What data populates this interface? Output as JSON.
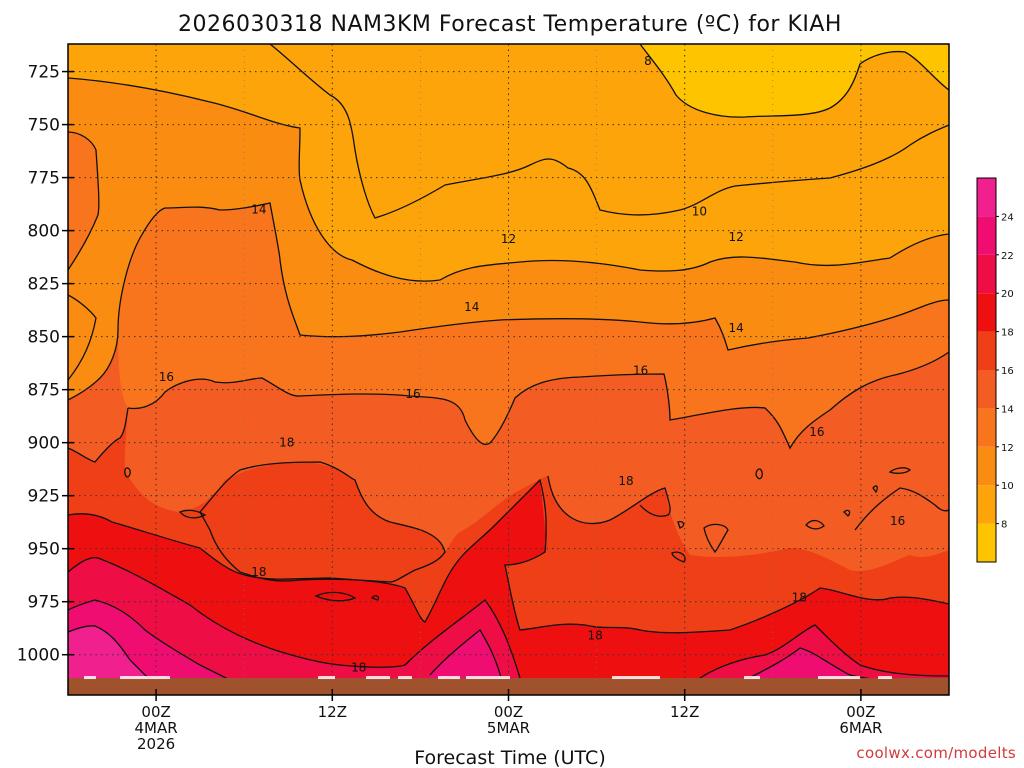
{
  "chart_data": {
    "type": "heatmap",
    "title": "2026030318 NAM3KM Forecast Temperature (ºC) for KIAH",
    "xlabel": "Forecast Time (UTC)",
    "ylabel": "",
    "watermark": "coolwx.com/modelts",
    "y_ticks": [
      725,
      750,
      775,
      800,
      825,
      850,
      875,
      900,
      925,
      950,
      975,
      1000
    ],
    "ylim": [
      1019,
      712
    ],
    "x_hours": [
      0,
      12,
      24,
      36,
      48
    ],
    "xlim": [
      -6,
      54
    ],
    "x_tick_labels": [
      {
        "hour": 0,
        "line1": "00Z",
        "line2": "4MAR",
        "line3": "2026"
      },
      {
        "hour": 12,
        "line1": "12Z",
        "line2": "",
        "line3": ""
      },
      {
        "hour": 24,
        "line1": "00Z",
        "line2": "5MAR",
        "line3": ""
      },
      {
        "hour": 36,
        "line1": "12Z",
        "line2": "",
        "line3": ""
      },
      {
        "hour": 48,
        "line1": "00Z",
        "line2": "6MAR",
        "line3": ""
      }
    ],
    "ground_level_hPa": 1011,
    "colorbar": {
      "levels": [
        8,
        10,
        12,
        14,
        16,
        18,
        20,
        22,
        24
      ],
      "colors": [
        "#fec400",
        "#fda40a",
        "#fb8c12",
        "#f8741d",
        "#f35c22",
        "#ee3f17",
        "#ee1010",
        "#ee0d45",
        "#ef0d72",
        "#f0208e"
      ]
    },
    "contour_labels": [
      {
        "value": "8",
        "hour": 33.5,
        "p": 720
      },
      {
        "value": "10",
        "hour": 37.0,
        "p": 791
      },
      {
        "value": "12",
        "hour": 24.0,
        "p": 804
      },
      {
        "value": "12",
        "hour": 39.5,
        "p": 803
      },
      {
        "value": "14",
        "hour": 7.0,
        "p": 790
      },
      {
        "value": "14",
        "hour": 21.5,
        "p": 836
      },
      {
        "value": "14",
        "hour": 39.5,
        "p": 846
      },
      {
        "value": "16",
        "hour": 0.7,
        "p": 869
      },
      {
        "value": "16",
        "hour": 17.5,
        "p": 877
      },
      {
        "value": "16",
        "hour": 33.0,
        "p": 866
      },
      {
        "value": "16",
        "hour": 45.0,
        "p": 895
      },
      {
        "value": "16",
        "hour": 50.5,
        "p": 937
      },
      {
        "value": "18",
        "hour": 8.9,
        "p": 900
      },
      {
        "value": "18",
        "hour": 7.0,
        "p": 961
      },
      {
        "value": "18",
        "hour": 13.8,
        "p": 1006
      },
      {
        "value": "18",
        "hour": 32.0,
        "p": 918
      },
      {
        "value": "18",
        "hour": 29.9,
        "p": 991
      },
      {
        "value": "18",
        "hour": 43.8,
        "p": 973
      }
    ]
  }
}
